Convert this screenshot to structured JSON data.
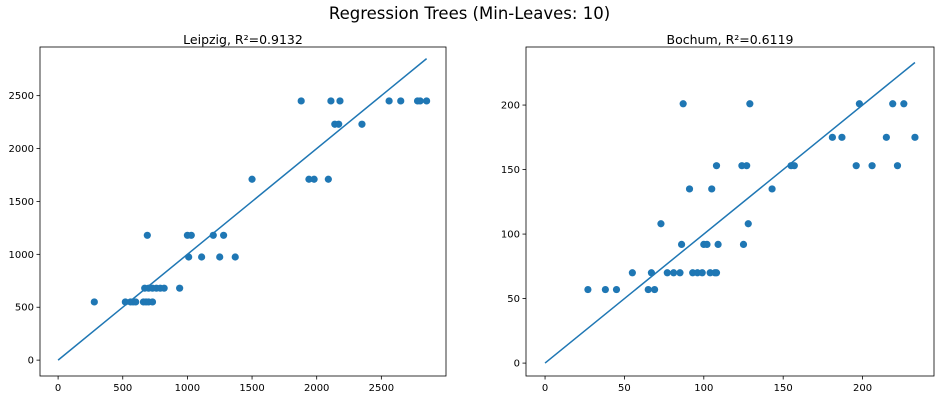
{
  "figure": {
    "suptitle": "Regression Trees (Min-Leaves: 10)"
  },
  "colors": {
    "series": "#1f77b4",
    "axis": "#000000"
  },
  "chart_data": [
    {
      "type": "scatter",
      "title": "Leipzig, R²=0.9132",
      "xlabel": "",
      "ylabel": "",
      "xlim": [
        -140,
        3000
      ],
      "ylim": [
        -150,
        2960
      ],
      "xticks": [
        0,
        500,
        1000,
        1500,
        2000,
        2500
      ],
      "yticks": [
        0,
        500,
        1000,
        1500,
        2000,
        2500
      ],
      "grid": false,
      "line": {
        "x": [
          0,
          2850
        ],
        "y": [
          0,
          2850
        ]
      },
      "points": [
        {
          "x": 280,
          "y": 550
        },
        {
          "x": 520,
          "y": 550
        },
        {
          "x": 560,
          "y": 550
        },
        {
          "x": 580,
          "y": 550
        },
        {
          "x": 600,
          "y": 550
        },
        {
          "x": 660,
          "y": 550
        },
        {
          "x": 680,
          "y": 550
        },
        {
          "x": 700,
          "y": 550
        },
        {
          "x": 730,
          "y": 550
        },
        {
          "x": 670,
          "y": 680
        },
        {
          "x": 700,
          "y": 680
        },
        {
          "x": 730,
          "y": 680
        },
        {
          "x": 760,
          "y": 680
        },
        {
          "x": 790,
          "y": 680
        },
        {
          "x": 820,
          "y": 680
        },
        {
          "x": 940,
          "y": 680
        },
        {
          "x": 690,
          "y": 1180
        },
        {
          "x": 1000,
          "y": 1180
        },
        {
          "x": 1030,
          "y": 1180
        },
        {
          "x": 1200,
          "y": 1180
        },
        {
          "x": 1280,
          "y": 1180
        },
        {
          "x": 1010,
          "y": 975
        },
        {
          "x": 1110,
          "y": 975
        },
        {
          "x": 1250,
          "y": 975
        },
        {
          "x": 1370,
          "y": 975
        },
        {
          "x": 1500,
          "y": 1710
        },
        {
          "x": 1940,
          "y": 1710
        },
        {
          "x": 1980,
          "y": 1710
        },
        {
          "x": 2090,
          "y": 1710
        },
        {
          "x": 2140,
          "y": 2230
        },
        {
          "x": 2170,
          "y": 2230
        },
        {
          "x": 2350,
          "y": 2230
        },
        {
          "x": 1880,
          "y": 2450
        },
        {
          "x": 2110,
          "y": 2450
        },
        {
          "x": 2180,
          "y": 2450
        },
        {
          "x": 2560,
          "y": 2450
        },
        {
          "x": 2650,
          "y": 2450
        },
        {
          "x": 2780,
          "y": 2450
        },
        {
          "x": 2800,
          "y": 2450
        },
        {
          "x": 2850,
          "y": 2450
        }
      ]
    },
    {
      "type": "scatter",
      "title": "Bochum, R²=0.6119",
      "xlabel": "",
      "ylabel": "",
      "xlim": [
        -12,
        245
      ],
      "ylim": [
        -10,
        245
      ],
      "xticks": [
        0,
        50,
        100,
        150,
        200
      ],
      "yticks": [
        0,
        50,
        100,
        150,
        200
      ],
      "grid": false,
      "line": {
        "x": [
          0,
          233
        ],
        "y": [
          0,
          233
        ]
      },
      "points": [
        {
          "x": 27,
          "y": 57
        },
        {
          "x": 38,
          "y": 57
        },
        {
          "x": 45,
          "y": 57
        },
        {
          "x": 65,
          "y": 57
        },
        {
          "x": 69,
          "y": 57
        },
        {
          "x": 55,
          "y": 70
        },
        {
          "x": 67,
          "y": 70
        },
        {
          "x": 77,
          "y": 70
        },
        {
          "x": 81,
          "y": 70
        },
        {
          "x": 85,
          "y": 70
        },
        {
          "x": 93,
          "y": 70
        },
        {
          "x": 96,
          "y": 70
        },
        {
          "x": 99,
          "y": 70
        },
        {
          "x": 104,
          "y": 70
        },
        {
          "x": 107,
          "y": 70
        },
        {
          "x": 108,
          "y": 70
        },
        {
          "x": 86,
          "y": 92
        },
        {
          "x": 100,
          "y": 92
        },
        {
          "x": 102,
          "y": 92
        },
        {
          "x": 109,
          "y": 92
        },
        {
          "x": 125,
          "y": 92
        },
        {
          "x": 73,
          "y": 108
        },
        {
          "x": 128,
          "y": 108
        },
        {
          "x": 91,
          "y": 135
        },
        {
          "x": 105,
          "y": 135
        },
        {
          "x": 143,
          "y": 135
        },
        {
          "x": 108,
          "y": 153
        },
        {
          "x": 124,
          "y": 153
        },
        {
          "x": 127,
          "y": 153
        },
        {
          "x": 155,
          "y": 153
        },
        {
          "x": 157,
          "y": 153
        },
        {
          "x": 196,
          "y": 153
        },
        {
          "x": 206,
          "y": 153
        },
        {
          "x": 222,
          "y": 153
        },
        {
          "x": 181,
          "y": 175
        },
        {
          "x": 187,
          "y": 175
        },
        {
          "x": 215,
          "y": 175
        },
        {
          "x": 233,
          "y": 175
        },
        {
          "x": 87,
          "y": 201
        },
        {
          "x": 129,
          "y": 201
        },
        {
          "x": 198,
          "y": 201
        },
        {
          "x": 219,
          "y": 201
        },
        {
          "x": 226,
          "y": 201
        }
      ]
    }
  ]
}
